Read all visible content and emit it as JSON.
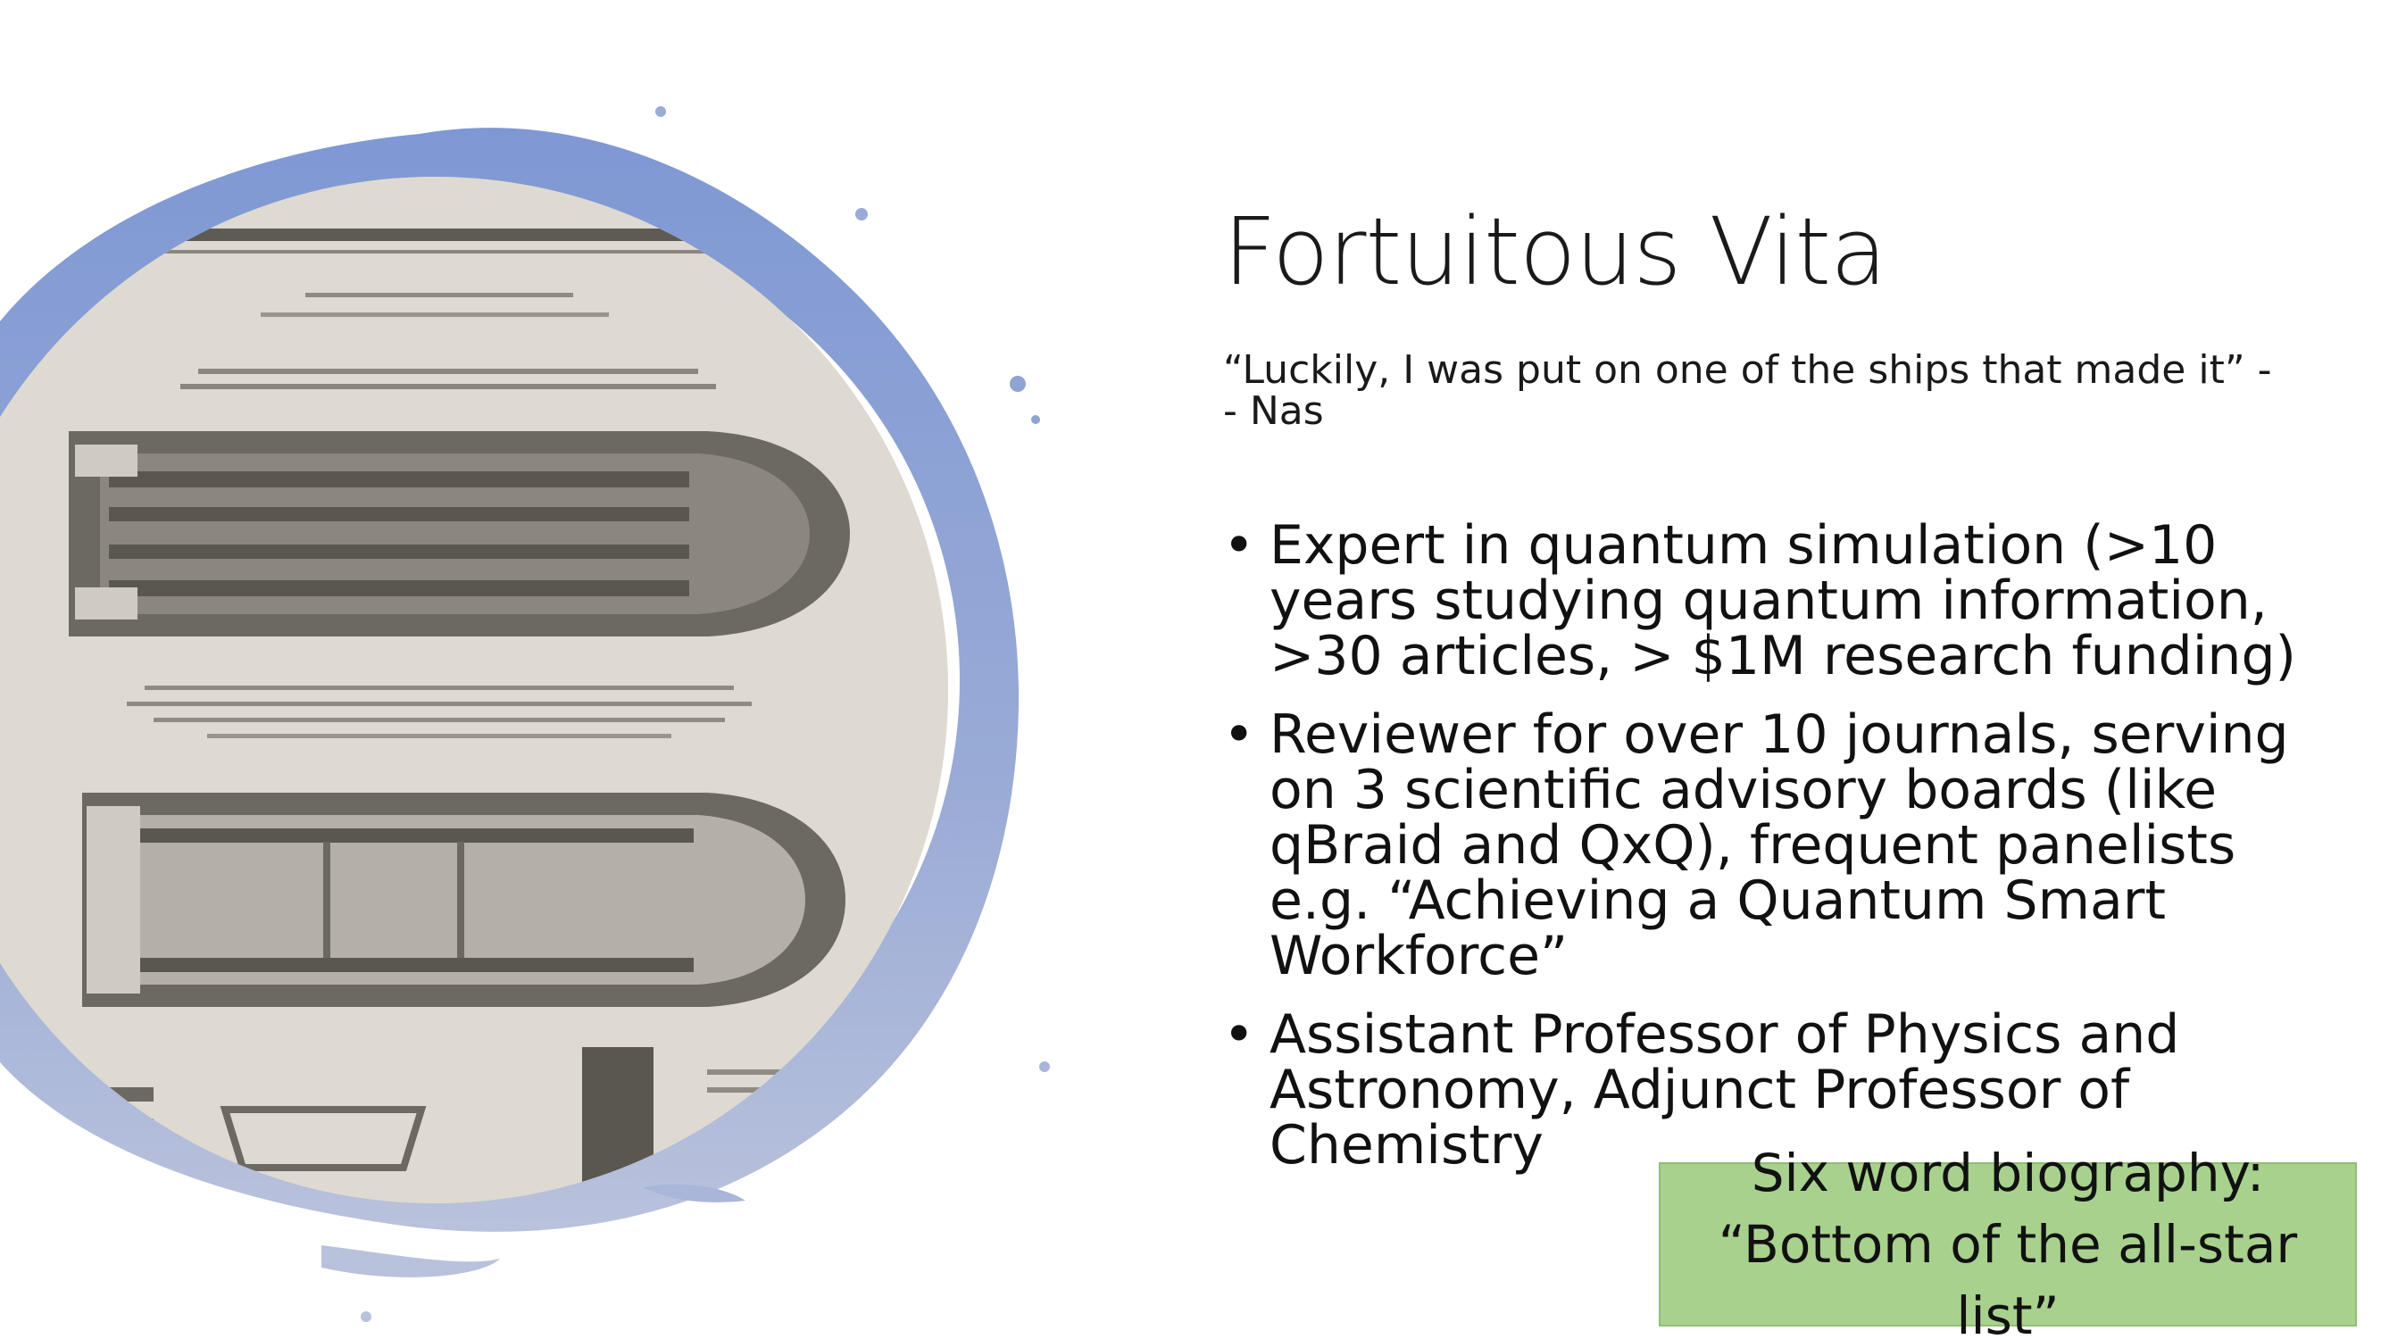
{
  "slide": {
    "title": "Fortuitous Vita",
    "quote": "“Luckily, I was put on one of the ships that made it” -- Nas",
    "bullet_symbol": "•",
    "bullets": [
      "Expert in quantum simulation (>10 years studying quantum information, >30 articles, > $1M research funding)",
      "Reviewer for over 10 journals, serving on 3 scientific advisory boards (like qBraid and QxQ), frequent panelists e.g. “Achieving a Quantum Smart Workforce”",
      "Assistant Professor of Physics and Astronomy, Adjunct Professor of Chemistry"
    ],
    "callout": {
      "line1": "Six word biography:",
      "line2": "“Bottom of the all-star list”",
      "background": "#a9d18e"
    },
    "image": {
      "icon": "slave-ship-diagram-image",
      "frame_color": "#8ea4d2"
    }
  }
}
